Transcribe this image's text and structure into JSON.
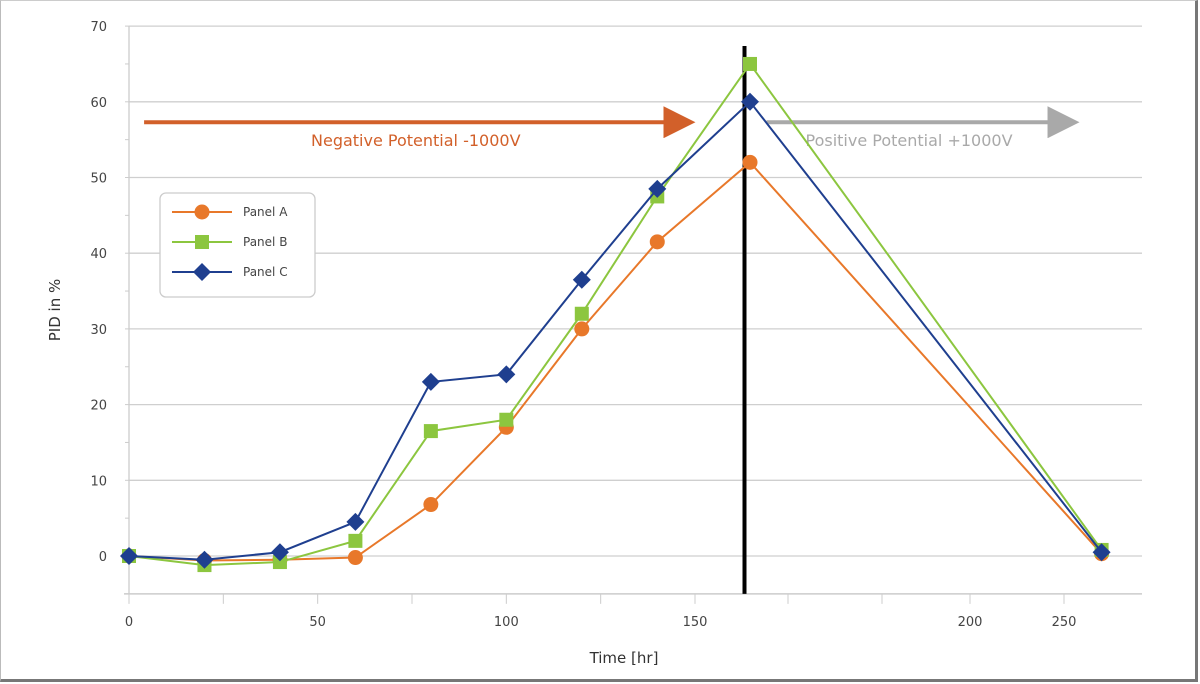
{
  "chart_data": {
    "type": "line",
    "title": "",
    "xlabel": "Time [hr]",
    "ylabel": "PID in %",
    "ylim": [
      -5,
      70
    ],
    "yticks": [
      0,
      10,
      20,
      30,
      40,
      50,
      60,
      70
    ],
    "xticks": [
      0,
      50,
      100,
      150,
      200,
      250
    ],
    "x_axis_note": "broken/non-linear scale after 150",
    "grid": "horizontal",
    "legend_placement": "upper-left",
    "series": [
      {
        "name": "Panel A",
        "color": "#e8782a",
        "marker": "circle",
        "x": [
          0,
          20,
          40,
          60,
          80,
          100,
          120,
          140,
          160,
          270
        ],
        "values": [
          0,
          -0.6,
          -0.5,
          -0.2,
          6.8,
          17,
          30,
          41.5,
          52,
          0.3
        ]
      },
      {
        "name": "Panel B",
        "color": "#8cc63f",
        "marker": "square",
        "x": [
          0,
          20,
          40,
          60,
          80,
          100,
          120,
          140,
          160,
          270
        ],
        "values": [
          0,
          -1.2,
          -0.8,
          2,
          16.5,
          18,
          32,
          47.5,
          65,
          0.8
        ]
      },
      {
        "name": "Panel C",
        "color": "#1f3f8f",
        "marker": "diamond",
        "x": [
          0,
          20,
          40,
          60,
          80,
          100,
          120,
          140,
          160,
          270
        ],
        "values": [
          0,
          -0.5,
          0.5,
          4.5,
          23,
          24,
          36.5,
          48.5,
          60,
          0.5
        ]
      }
    ],
    "vertical_line": {
      "x": 159,
      "color": "#000000"
    },
    "annotations": [
      {
        "text": "Negative Potential -1000V",
        "color": "#d2602a",
        "arrow_from_x": 4,
        "arrow_to_x": 148,
        "y": 57.3
      },
      {
        "text": "Positive Potential +1000V",
        "color": "#a9a9a9",
        "arrow_from_x": 163,
        "arrow_to_x": 254,
        "y": 57.3
      }
    ]
  }
}
